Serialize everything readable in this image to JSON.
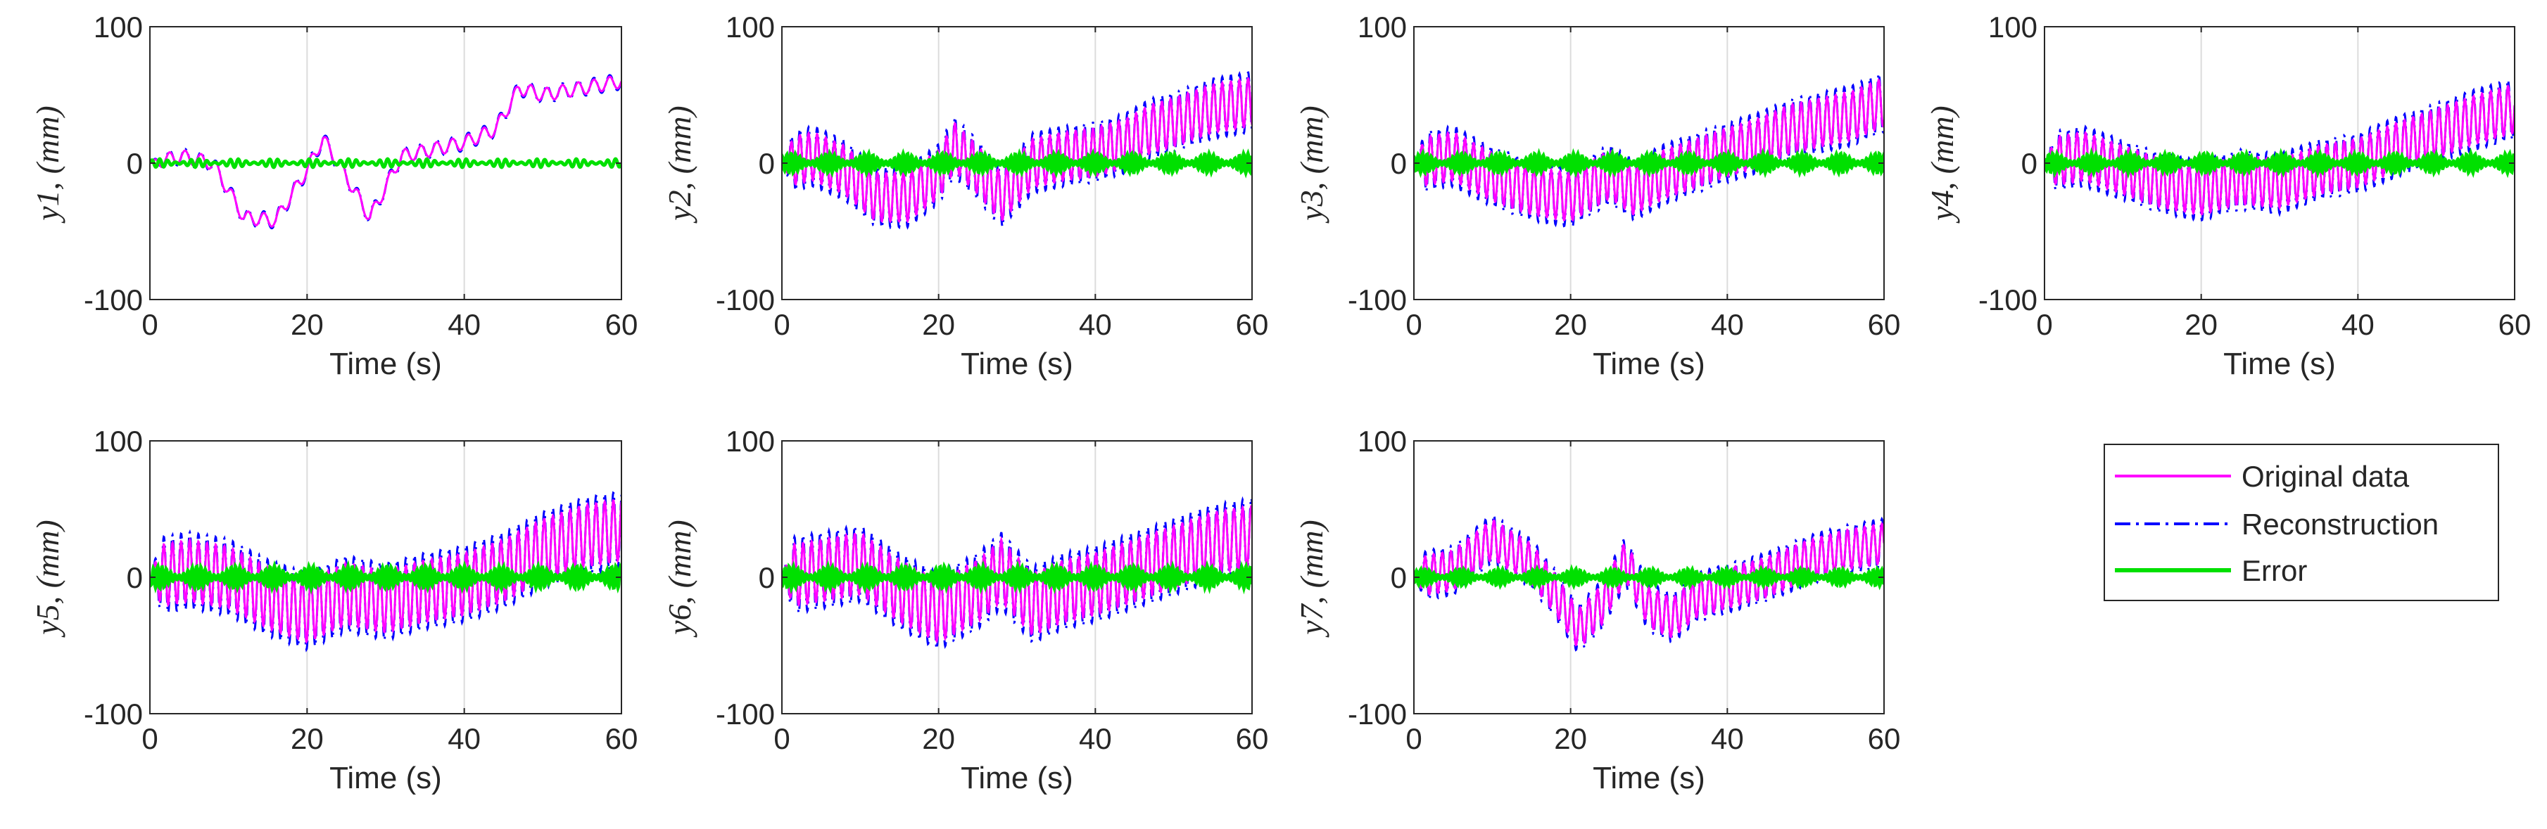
{
  "colors": {
    "original": "#ff00ff",
    "reconstruction": "#0000ff",
    "error": "#00e000",
    "axis": "#262626",
    "grid": "#dcdcdc"
  },
  "legend": {
    "entries": [
      {
        "label": "Original data",
        "style": "solid",
        "color": "#ff00ff"
      },
      {
        "label": "Reconstruction",
        "style": "dash-dot",
        "color": "#0000ff"
      },
      {
        "label": "Error",
        "style": "solid",
        "color": "#00e000"
      }
    ]
  },
  "chart_data": [
    {
      "type": "line",
      "id": "y1",
      "title": "",
      "xlabel": "Time (s)",
      "ylabel": "y1, (mm)",
      "xlim": [
        0,
        60
      ],
      "ylim": [
        -100,
        100
      ],
      "xticks": [
        "0",
        "20",
        "40",
        "60"
      ],
      "yticks": [
        "100",
        "0",
        "-100"
      ],
      "grid": "x",
      "trend": {
        "t": [
          0,
          4,
          8,
          12,
          16,
          20,
          22,
          25,
          28,
          32,
          36,
          40,
          44,
          47,
          50,
          55,
          60
        ],
        "v": [
          0,
          5,
          0,
          -40,
          -42,
          -5,
          18,
          -10,
          -40,
          5,
          10,
          15,
          25,
          55,
          50,
          55,
          60
        ]
      },
      "oscillation": {
        "amplitude": 6,
        "period_s": 2.0
      },
      "error_amplitude": 3,
      "series": [
        {
          "name": "Original data"
        },
        {
          "name": "Reconstruction"
        },
        {
          "name": "Error"
        }
      ]
    },
    {
      "type": "line",
      "id": "y2",
      "title": "",
      "xlabel": "Time (s)",
      "ylabel": "y2, (mm)",
      "xlim": [
        0,
        60
      ],
      "ylim": [
        -100,
        100
      ],
      "xticks": [
        "0",
        "20",
        "40",
        "60"
      ],
      "yticks": [
        "100",
        "0",
        "-100"
      ],
      "grid": "x",
      "trend": {
        "t": [
          0,
          4,
          8,
          12,
          16,
          20,
          22,
          25,
          28,
          32,
          36,
          40,
          44,
          47,
          50,
          55,
          60
        ],
        "v": [
          0,
          5,
          -5,
          -25,
          -25,
          -8,
          12,
          -5,
          -25,
          0,
          5,
          8,
          15,
          25,
          30,
          40,
          45
        ]
      },
      "oscillation": {
        "amplitude": 22,
        "period_s": 1.1
      },
      "error_amplitude": 7,
      "series": [
        {
          "name": "Original data"
        },
        {
          "name": "Reconstruction"
        },
        {
          "name": "Error"
        }
      ]
    },
    {
      "type": "line",
      "id": "y3",
      "title": "",
      "xlabel": "Time (s)",
      "ylabel": "y3, (mm)",
      "xlim": [
        0,
        60
      ],
      "ylim": [
        -100,
        100
      ],
      "xticks": [
        "0",
        "20",
        "40",
        "60"
      ],
      "yticks": [
        "100",
        "0",
        "-100"
      ],
      "grid": "x",
      "trend": {
        "t": [
          0,
          5,
          10,
          15,
          20,
          25,
          28,
          32,
          36,
          40,
          44,
          48,
          52,
          56,
          60
        ],
        "v": [
          0,
          5,
          -10,
          -20,
          -25,
          -8,
          -20,
          -8,
          0,
          8,
          15,
          25,
          30,
          35,
          45
        ]
      },
      "oscillation": {
        "amplitude": 22,
        "period_s": 1.1
      },
      "error_amplitude": 7,
      "series": [
        {
          "name": "Original data"
        },
        {
          "name": "Reconstruction"
        },
        {
          "name": "Error"
        }
      ]
    },
    {
      "type": "line",
      "id": "y4",
      "title": "",
      "xlabel": "Time (s)",
      "ylabel": "y4, (mm)",
      "xlim": [
        0,
        60
      ],
      "ylim": [
        -100,
        100
      ],
      "xticks": [
        "0",
        "20",
        "40",
        "60"
      ],
      "yticks": [
        "100",
        "0",
        "-100"
      ],
      "grid": "x",
      "trend": {
        "t": [
          0,
          5,
          10,
          15,
          20,
          25,
          30,
          35,
          40,
          45,
          50,
          55,
          60
        ],
        "v": [
          0,
          5,
          -5,
          -15,
          -20,
          -12,
          -15,
          -5,
          0,
          12,
          22,
          32,
          40
        ]
      },
      "oscillation": {
        "amplitude": 22,
        "period_s": 1.1
      },
      "error_amplitude": 7,
      "series": [
        {
          "name": "Original data"
        },
        {
          "name": "Reconstruction"
        },
        {
          "name": "Error"
        }
      ]
    },
    {
      "type": "line",
      "id": "y5",
      "title": "",
      "xlabel": "Time (s)",
      "ylabel": "y5, (mm)",
      "xlim": [
        0,
        60
      ],
      "ylim": [
        -100,
        100
      ],
      "xticks": [
        "0",
        "20",
        "40",
        "60"
      ],
      "yticks": [
        "100",
        "0",
        "-100"
      ],
      "grid": "x",
      "trend": {
        "t": [
          0,
          5,
          10,
          15,
          20,
          25,
          30,
          35,
          40,
          45,
          50,
          55,
          60
        ],
        "v": [
          0,
          5,
          0,
          -15,
          -25,
          -12,
          -18,
          -10,
          -5,
          5,
          20,
          30,
          35
        ]
      },
      "oscillation": {
        "amplitude": 28,
        "period_s": 1.1
      },
      "error_amplitude": 8,
      "series": [
        {
          "name": "Original data"
        },
        {
          "name": "Reconstruction"
        },
        {
          "name": "Error"
        }
      ]
    },
    {
      "type": "line",
      "id": "y6",
      "title": "",
      "xlabel": "Time (s)",
      "ylabel": "y6, (mm)",
      "xlim": [
        0,
        60
      ],
      "ylim": [
        -100,
        100
      ],
      "xticks": [
        "0",
        "20",
        "40",
        "60"
      ],
      "yticks": [
        "100",
        "0",
        "-100"
      ],
      "grid": "x",
      "trend": {
        "t": [
          0,
          5,
          10,
          15,
          20,
          25,
          28,
          32,
          36,
          40,
          45,
          50,
          55,
          60
        ],
        "v": [
          0,
          5,
          10,
          -10,
          -25,
          -10,
          5,
          -20,
          -10,
          -5,
          5,
          15,
          25,
          30
        ]
      },
      "oscillation": {
        "amplitude": 28,
        "period_s": 1.1
      },
      "error_amplitude": 8,
      "series": [
        {
          "name": "Original data"
        },
        {
          "name": "Reconstruction"
        },
        {
          "name": "Error"
        }
      ]
    },
    {
      "type": "line",
      "id": "y7",
      "title": "",
      "xlabel": "Time (s)",
      "ylabel": "y7, (mm)",
      "xlim": [
        0,
        60
      ],
      "ylim": [
        -100,
        100
      ],
      "xticks": [
        "0",
        "20",
        "40",
        "60"
      ],
      "yticks": [
        "100",
        "0",
        "-100"
      ],
      "grid": "x",
      "trend": {
        "t": [
          0,
          5,
          10,
          15,
          18,
          21,
          24,
          27,
          30,
          33,
          36,
          40,
          45,
          50,
          55,
          60
        ],
        "v": [
          0,
          5,
          28,
          10,
          -12,
          -38,
          -20,
          12,
          -22,
          -30,
          -15,
          -8,
          0,
          12,
          20,
          25
        ]
      },
      "oscillation": {
        "amplitude": 18,
        "period_s": 1.1
      },
      "error_amplitude": 6,
      "series": [
        {
          "name": "Original data"
        },
        {
          "name": "Reconstruction"
        },
        {
          "name": "Error"
        }
      ]
    }
  ]
}
